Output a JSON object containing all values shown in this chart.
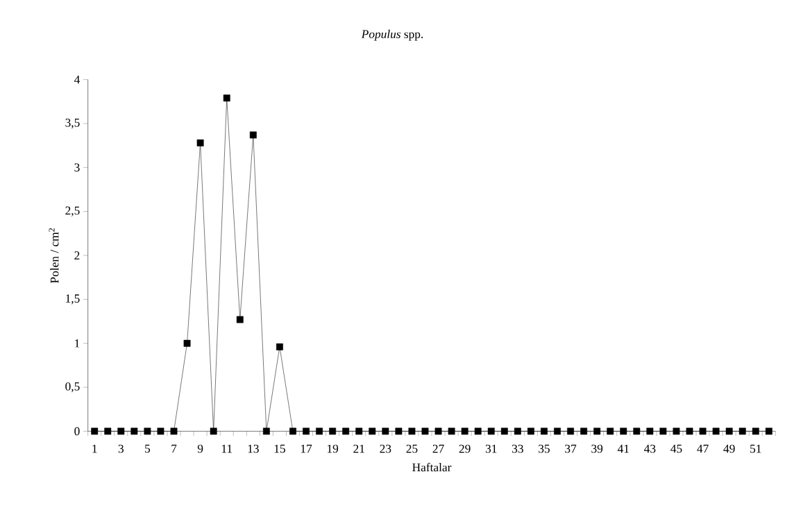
{
  "chart_data": {
    "type": "line",
    "title": "*Populus* spp.",
    "xlabel": "Haftalar",
    "ylabel": "Polen / cm$^{2}$",
    "categories": [
      "1",
      null,
      "3",
      null,
      "5",
      null,
      "7",
      null,
      "9",
      null,
      "11",
      null,
      "13",
      null,
      "15",
      null,
      "17",
      null,
      "19",
      null,
      "21",
      null,
      "23",
      null,
      "25",
      null,
      "27",
      null,
      "29",
      null,
      "31",
      null,
      "33",
      null,
      "35",
      null,
      "37",
      null,
      "39",
      null,
      "41",
      null,
      "43",
      null,
      "45",
      null,
      "47",
      null,
      "49",
      null,
      "51",
      null
    ],
    "values": [
      0,
      0,
      0,
      0,
      0,
      0,
      0,
      1.0,
      3.28,
      0,
      3.79,
      1.27,
      3.37,
      0,
      0.96,
      0,
      0,
      0,
      0,
      0,
      0,
      0,
      0,
      0,
      0,
      0,
      0,
      0,
      0,
      0,
      0,
      0,
      0,
      0,
      0,
      0,
      0,
      0,
      0,
      0,
      0,
      0,
      0,
      0,
      0,
      0,
      0,
      0,
      0,
      0,
      0,
      0
    ],
    "color": "#000000",
    "marker": "square",
    "line_style": "solid",
    "grid": false,
    "ylim": [
      0,
      4
    ],
    "yticks": [
      0,
      {
        "value": 0.5,
        "label": "0,5"
      },
      1,
      {
        "value": 1.5,
        "label": "1,5"
      },
      2,
      {
        "value": 2.5,
        "label": "2,5"
      },
      3,
      {
        "value": 3.5,
        "label": "3,5"
      },
      4
    ]
  }
}
